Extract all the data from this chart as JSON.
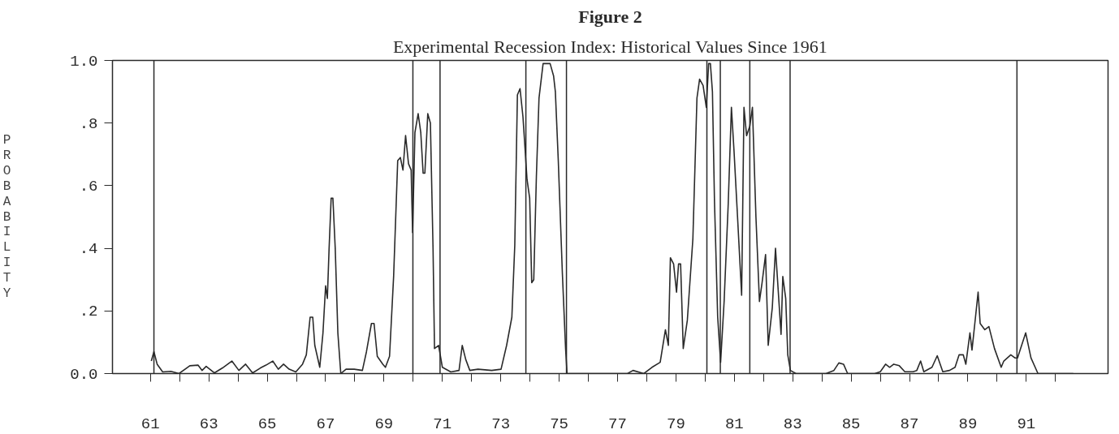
{
  "chart_data": {
    "type": "line",
    "title": "Figure 2",
    "subtitle": "Experimental Recession Index: Historical Values Since 1961",
    "ylabel": "PROBABILITY",
    "series": [
      {
        "color": "#2a2a2a",
        "x": [
          61.03,
          61.12,
          61.23,
          61.42,
          61.7,
          61.98,
          62.35,
          62.63,
          62.77,
          62.91,
          63.19,
          63.47,
          63.79,
          64.03,
          64.26,
          64.5,
          64.77,
          64.96,
          65.19,
          65.38,
          65.56,
          65.75,
          65.98,
          66.21,
          66.34,
          66.47,
          66.56,
          66.63,
          66.8,
          66.91,
          67.0,
          67.06,
          67.12,
          67.19,
          67.25,
          67.33,
          67.42,
          67.52,
          67.7,
          67.98,
          68.26,
          68.4,
          68.57,
          68.66,
          68.77,
          68.96,
          69.05,
          69.19,
          69.33,
          69.47,
          69.56,
          69.65,
          69.74,
          69.84,
          69.93,
          69.98,
          70.06,
          70.17,
          70.26,
          70.34,
          70.4,
          70.5,
          70.59,
          70.68,
          70.73,
          70.87,
          71.0,
          71.29,
          71.57,
          71.68,
          71.8,
          71.94,
          72.22,
          72.69,
          73.01,
          73.2,
          73.38,
          73.48,
          73.57,
          73.66,
          73.76,
          73.9,
          73.99,
          74.06,
          74.13,
          74.22,
          74.31,
          74.45,
          74.69,
          74.81,
          74.87,
          74.97,
          75.11,
          75.22,
          75.27,
          75.48,
          76.04,
          76.6,
          77.34,
          77.53,
          77.9,
          78.18,
          78.46,
          78.64,
          78.74,
          78.81,
          78.92,
          79.02,
          79.09,
          79.16,
          79.25,
          79.39,
          79.58,
          79.72,
          79.81,
          79.93,
          80.04,
          80.12,
          80.18,
          80.25,
          80.32,
          80.43,
          80.53,
          80.65,
          80.79,
          80.9,
          80.99,
          81.11,
          81.25,
          81.33,
          81.42,
          81.53,
          81.62,
          81.74,
          81.86,
          81.95,
          82.07,
          82.16,
          82.3,
          82.41,
          82.6,
          82.66,
          82.76,
          82.83,
          82.92,
          83.11,
          83.58,
          84.14,
          84.41,
          84.58,
          84.74,
          84.88,
          85.16,
          85.81,
          86.0,
          86.18,
          86.32,
          86.46,
          86.65,
          86.84,
          87.12,
          87.25,
          87.38,
          87.49,
          87.77,
          87.95,
          88.14,
          88.37,
          88.56,
          88.7,
          88.84,
          88.93,
          89.07,
          89.14,
          89.26,
          89.35,
          89.42,
          89.58,
          89.72,
          89.91,
          90.14,
          90.23,
          90.47,
          90.61,
          90.7,
          90.98,
          91.16,
          91.4,
          92.61
        ],
        "values": [
          0.04,
          0.07,
          0.03,
          0.005,
          0.007,
          0,
          0.025,
          0.027,
          0.01,
          0.023,
          0.002,
          0.018,
          0.04,
          0.01,
          0.03,
          0.002,
          0.018,
          0.027,
          0.04,
          0.014,
          0.03,
          0.014,
          0.005,
          0.03,
          0.06,
          0.18,
          0.18,
          0.09,
          0.02,
          0.13,
          0.28,
          0.24,
          0.4,
          0.56,
          0.56,
          0.4,
          0.13,
          0,
          0.014,
          0.014,
          0.01,
          0.07,
          0.16,
          0.16,
          0.055,
          0.03,
          0.02,
          0.055,
          0.31,
          0.68,
          0.69,
          0.65,
          0.76,
          0.67,
          0.65,
          0.45,
          0.77,
          0.83,
          0.77,
          0.64,
          0.64,
          0.83,
          0.8,
          0.4,
          0.08,
          0.09,
          0.02,
          0.005,
          0.01,
          0.09,
          0.045,
          0.01,
          0.014,
          0.01,
          0.014,
          0.09,
          0.18,
          0.41,
          0.89,
          0.91,
          0.82,
          0.62,
          0.56,
          0.29,
          0.3,
          0.63,
          0.88,
          0.99,
          0.99,
          0.95,
          0.9,
          0.68,
          0.32,
          0.08,
          0,
          0,
          0,
          0,
          0,
          0.01,
          0,
          0.02,
          0.036,
          0.14,
          0.09,
          0.37,
          0.35,
          0.26,
          0.35,
          0.35,
          0.08,
          0.17,
          0.43,
          0.88,
          0.94,
          0.92,
          0.85,
          0.99,
          0.99,
          0.9,
          0.55,
          0.18,
          0.036,
          0.23,
          0.54,
          0.85,
          0.71,
          0.5,
          0.25,
          0.85,
          0.76,
          0.79,
          0.85,
          0.5,
          0.23,
          0.29,
          0.38,
          0.09,
          0.21,
          0.4,
          0.125,
          0.31,
          0.24,
          0.06,
          0.01,
          0,
          0,
          0,
          0.01,
          0.034,
          0.03,
          0,
          0,
          0,
          0.006,
          0.03,
          0.02,
          0.03,
          0.025,
          0.006,
          0.006,
          0.01,
          0.04,
          0.006,
          0.02,
          0.057,
          0.006,
          0.01,
          0.02,
          0.06,
          0.06,
          0.03,
          0.13,
          0.075,
          0.18,
          0.26,
          0.16,
          0.14,
          0.15,
          0.08,
          0.02,
          0.04,
          0.06,
          0.05,
          0.05,
          0.13,
          0.05,
          0,
          0
        ]
      }
    ],
    "xlim": [
      59.7,
      93.8
    ],
    "ylim": [
      0,
      1.0
    ],
    "xticks": [
      61,
      {
        "value": 62,
        "label": null
      },
      63,
      {
        "value": 64,
        "label": null
      },
      65,
      {
        "value": 66,
        "label": null
      },
      67,
      {
        "value": 68,
        "label": null
      },
      69,
      {
        "value": 70,
        "label": null
      },
      71,
      {
        "value": 72,
        "label": null
      },
      73,
      {
        "value": 74,
        "label": null
      },
      75,
      {
        "value": 76,
        "label": null
      },
      77,
      {
        "value": 78,
        "label": null
      },
      79,
      {
        "value": 80,
        "label": null
      },
      81,
      {
        "value": 82,
        "label": null
      },
      83,
      {
        "value": 84,
        "label": null
      },
      85,
      {
        "value": 86,
        "label": null
      },
      87,
      {
        "value": 88,
        "label": null
      },
      89,
      {
        "value": 90,
        "label": null
      },
      91,
      {
        "value": 92,
        "label": null
      }
    ],
    "yticks": [
      {
        "value": 0,
        "label": "0.0"
      },
      {
        "value": 0.2,
        "label": ".2"
      },
      {
        "value": 0.4,
        "label": ".4"
      },
      {
        "value": 0.6,
        "label": ".6"
      },
      {
        "value": 0.8,
        "label": ".8"
      },
      {
        "value": 1.0,
        "label": "1.0"
      }
    ],
    "ref_lines": [
      {
        "axis": "x",
        "value": 61.12,
        "color": "#2a2a2a"
      },
      {
        "axis": "x",
        "value": 69.99,
        "color": "#2a2a2a"
      },
      {
        "axis": "x",
        "value": 70.92,
        "color": "#2a2a2a"
      },
      {
        "axis": "x",
        "value": 73.86,
        "color": "#2a2a2a"
      },
      {
        "axis": "x",
        "value": 75.25,
        "color": "#2a2a2a"
      },
      {
        "axis": "x",
        "value": 80.06,
        "color": "#2a2a2a"
      },
      {
        "axis": "x",
        "value": 80.52,
        "color": "#2a2a2a"
      },
      {
        "axis": "x",
        "value": 81.53,
        "color": "#2a2a2a"
      },
      {
        "axis": "x",
        "value": 82.91,
        "color": "#2a2a2a"
      },
      {
        "axis": "x",
        "value": 90.68,
        "color": "#2a2a2a"
      }
    ],
    "grid": false,
    "marker": "none",
    "line_style": "solid"
  }
}
